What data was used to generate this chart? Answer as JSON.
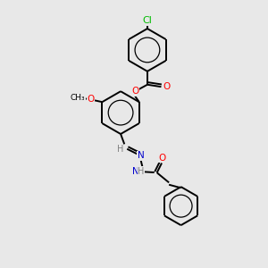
{
  "background_color": "#e8e8e8",
  "atom_colors": {
    "O": "#ff0000",
    "N": "#0000cc",
    "Cl": "#00bb00",
    "H": "#808080",
    "C": "#000000"
  },
  "bond_color": "#000000",
  "bond_lw": 1.4,
  "font_size_atom": 7.5,
  "figsize": [
    3.0,
    3.0
  ],
  "dpi": 100,
  "xlim": [
    0,
    10
  ],
  "ylim": [
    0,
    10
  ]
}
